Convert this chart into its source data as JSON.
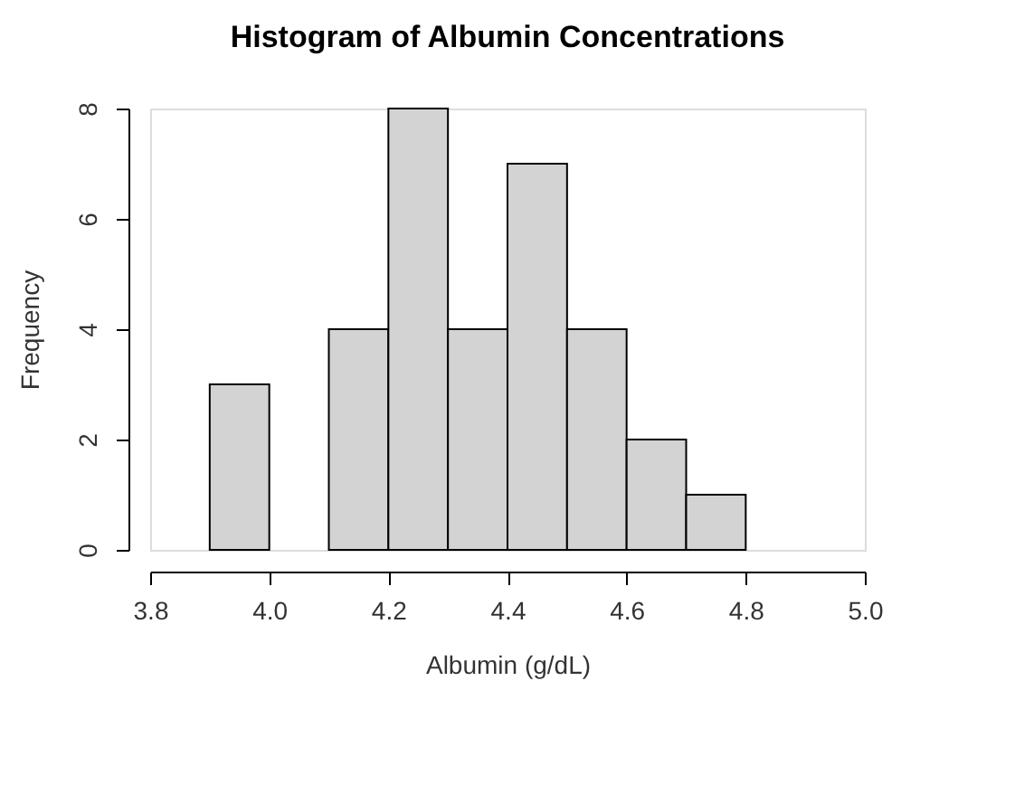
{
  "chart_data": {
    "type": "histogram",
    "title": "Histogram of Albumin Concentrations",
    "xlabel": "Albumin (g/dL)",
    "ylabel": "Frequency",
    "bins": [
      3.9,
      4.0,
      4.1,
      4.2,
      4.3,
      4.4,
      4.5,
      4.6,
      4.7,
      4.8
    ],
    "values": [
      3,
      0,
      4,
      8,
      4,
      7,
      4,
      2,
      1
    ],
    "color": "#d3d3d3",
    "xlim": [
      3.8,
      5.0
    ],
    "xticks": [
      3.8,
      {
        "value": 4.0,
        "label": "4.0"
      },
      4.2,
      4.4,
      4.6,
      4.8,
      {
        "value": 5.0,
        "label": "5.0"
      }
    ],
    "ylim": [
      0,
      8
    ],
    "yticks": [
      0,
      2,
      4,
      6,
      8
    ],
    "grid": false
  }
}
